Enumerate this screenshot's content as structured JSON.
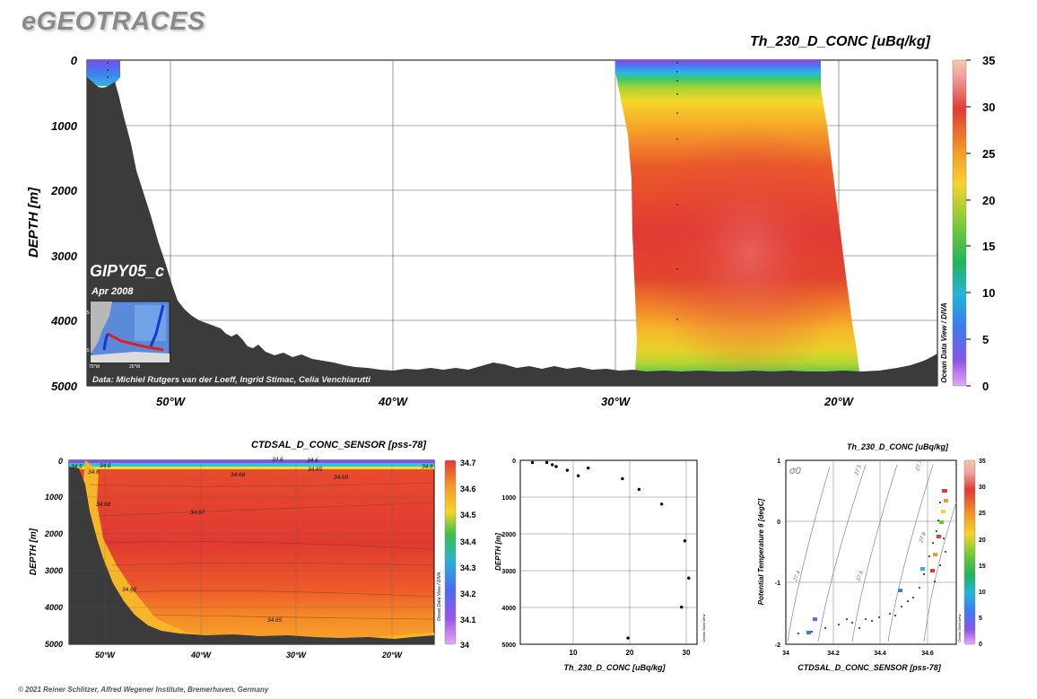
{
  "brand": "eGEOTRACES",
  "copyright": "© 2021 Reiner Schlitzer, Alfred Wegener Institute, Bremerhaven, Germany",
  "colorbar_side_label": "Ocean Data View / DIVA",
  "colorbar_small_label": "Ocean Data View",
  "main_section": {
    "title": "Th_230_D_CONC [uBq/kg]",
    "ylabel": "DEPTH [m]",
    "y_ticks": [
      "0",
      "1000",
      "2000",
      "3000",
      "4000",
      "5000"
    ],
    "x_ticks": [
      "50°W",
      "40°W",
      "30°W",
      "20°W"
    ],
    "colorbar_ticks": [
      "35",
      "30",
      "25",
      "20",
      "15",
      "10",
      "5",
      "0"
    ],
    "inset": {
      "cruise": "GIPY05_c",
      "date": "Apr 2008",
      "lat_labels": [
        "40°S",
        "70°S"
      ],
      "lon_labels": [
        "75°W",
        "25°W"
      ]
    },
    "data_credit": "Data: Michiel Rutgers van der Loeff, Ingrid Stimac, Celia Venchiarutti"
  },
  "salinity_section": {
    "title": "CTDSAL_D_CONC_SENSOR [pss-78]",
    "ylabel": "DEPTH [m]",
    "y_ticks": [
      "0",
      "1000",
      "2000",
      "3000",
      "4000",
      "5000"
    ],
    "x_ticks": [
      "50°W",
      "40°W",
      "30°W",
      "20°W"
    ],
    "colorbar_ticks": [
      "34.7",
      "34.6",
      "34.5",
      "34.4",
      "34.3",
      "34.2",
      "34.1",
      "34"
    ],
    "contour_labels": [
      "34.6",
      "34.68",
      "34.65",
      "34.69",
      "34.68",
      "34.67",
      "34.66",
      "34.65",
      "34.5",
      "34.6",
      "34.6",
      "34.6",
      "34.6"
    ]
  },
  "chart_data": [
    {
      "type": "heatmap",
      "title": "Th_230_D_CONC [uBq/kg]",
      "ylabel": "DEPTH [m]",
      "xlim": [
        "54°W",
        "16°W"
      ],
      "ylim": [
        0,
        5000
      ],
      "colorbar_range": [
        0,
        35
      ],
      "notes": "Section plot; Th-230 high values (~30-33) near 3200 m, centred ~25°W"
    },
    {
      "type": "heatmap",
      "title": "CTDSAL_D_CONC_SENSOR [pss-78]",
      "ylabel": "DEPTH [m]",
      "colorbar_range": [
        34,
        34.7
      ],
      "ylim": [
        0,
        5000
      ]
    },
    {
      "type": "scatter",
      "xlabel": "Th_230_D_CONC [uBq/kg]",
      "ylabel": "DEPTH [m]",
      "xlim": [
        0,
        32
      ],
      "ylim": [
        5000,
        0
      ],
      "x_ticks": [
        "10",
        "20",
        "30"
      ],
      "y_ticks": [
        "0",
        "1000",
        "2000",
        "3000",
        "4000",
        "5000"
      ],
      "points": [
        {
          "x": 2.2,
          "y": 60
        },
        {
          "x": 4.8,
          "y": 60
        },
        {
          "x": 5.8,
          "y": 120
        },
        {
          "x": 6.5,
          "y": 170
        },
        {
          "x": 8.5,
          "y": 270
        },
        {
          "x": 10.5,
          "y": 420
        },
        {
          "x": 12.3,
          "y": 210
        },
        {
          "x": 18.5,
          "y": 500
        },
        {
          "x": 21.5,
          "y": 790
        },
        {
          "x": 25.6,
          "y": 1190
        },
        {
          "x": 29.8,
          "y": 2190
        },
        {
          "x": 30.5,
          "y": 3200
        },
        {
          "x": 29.2,
          "y": 3990
        },
        {
          "x": 19.5,
          "y": 4830
        }
      ]
    },
    {
      "type": "scatter",
      "title": "Th_230_D_CONC [uBq/kg]",
      "xlabel": "CTDSAL_D_CONC_SENSOR [pss-78]",
      "ylabel": "Potential Temperature θ [degC]",
      "xlim": [
        34,
        34.72
      ],
      "ylim": [
        -2,
        1
      ],
      "x_ticks": [
        "34",
        "34.2",
        "34.4",
        "34.6"
      ],
      "y_ticks": [
        "1",
        "0",
        "-1",
        "-2"
      ],
      "isopycnal_labels": [
        "27.4",
        "27.5",
        "27.6",
        "27.7",
        "27.8"
      ],
      "sigma_label": "σ0",
      "colorbar_ticks": [
        "35",
        "30",
        "25",
        "20",
        "15",
        "10",
        "5",
        "0"
      ]
    }
  ]
}
